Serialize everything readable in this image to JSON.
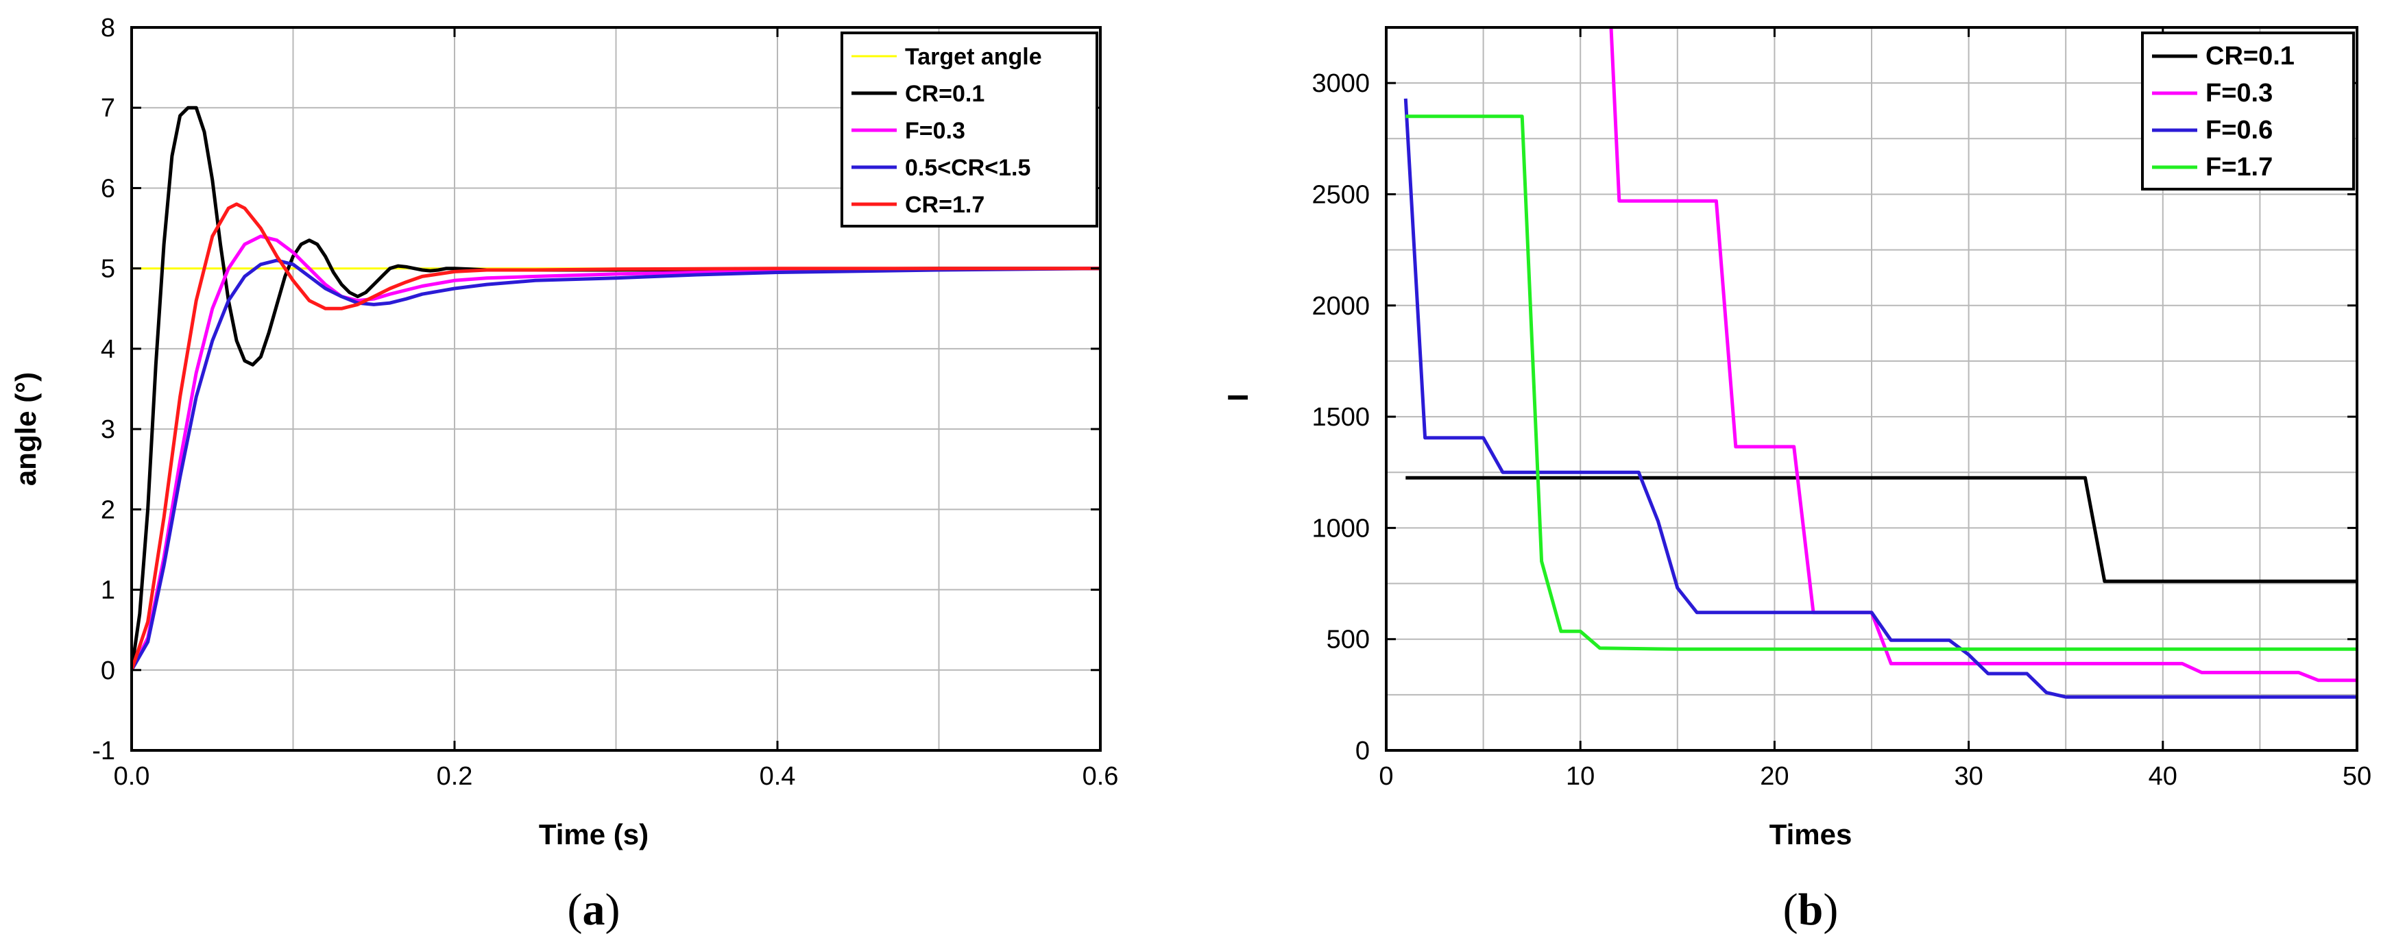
{
  "charts_meta": {
    "label_a_open": "(",
    "label_a_letter": "a",
    "label_a_close": ")",
    "label_b_open": "(",
    "label_b_letter": "b",
    "label_b_close": ")"
  },
  "chart_data": [
    {
      "panel": "(a)",
      "type": "line",
      "title": "",
      "xlabel": "Time (s)",
      "ylabel": "angle (°)",
      "xlim": [
        0,
        0.6
      ],
      "ylim": [
        -1,
        8
      ],
      "xticks": [
        "0.0",
        "0.2",
        "0.4",
        "0.6"
      ],
      "yticks": [
        "-1",
        "0",
        "1",
        "2",
        "3",
        "4",
        "5",
        "6",
        "7",
        "8"
      ],
      "grid": true,
      "legend_position": "top-right",
      "series": [
        {
          "name": "Target angle",
          "color": "#ffff00",
          "x": [
            0,
            0.6
          ],
          "y": [
            5,
            5
          ]
        },
        {
          "name": "CR=0.1",
          "color": "#000000",
          "x": [
            0,
            0.005,
            0.01,
            0.015,
            0.02,
            0.025,
            0.03,
            0.035,
            0.04,
            0.045,
            0.05,
            0.055,
            0.06,
            0.065,
            0.07,
            0.075,
            0.08,
            0.085,
            0.09,
            0.095,
            0.1,
            0.105,
            0.11,
            0.115,
            0.12,
            0.125,
            0.13,
            0.135,
            0.14,
            0.145,
            0.15,
            0.155,
            0.16,
            0.165,
            0.17,
            0.175,
            0.18,
            0.185,
            0.19,
            0.195,
            0.2,
            0.21,
            0.22,
            0.23,
            0.24,
            0.25,
            0.27,
            0.3,
            0.4,
            0.5,
            0.6
          ],
          "y": [
            0,
            0.7,
            2.0,
            3.8,
            5.3,
            6.4,
            6.9,
            7.0,
            7.0,
            6.7,
            6.1,
            5.3,
            4.6,
            4.1,
            3.85,
            3.8,
            3.9,
            4.2,
            4.55,
            4.9,
            5.15,
            5.3,
            5.35,
            5.3,
            5.15,
            4.95,
            4.8,
            4.7,
            4.65,
            4.7,
            4.8,
            4.9,
            5.0,
            5.03,
            5.02,
            5.0,
            4.98,
            4.97,
            4.98,
            5.0,
            5.0,
            4.99,
            4.98,
            4.98,
            4.98,
            4.98,
            4.98,
            4.98,
            4.99,
            5.0,
            5.0
          ]
        },
        {
          "name": "F=0.3",
          "color": "#ff00ff",
          "x": [
            0,
            0.01,
            0.02,
            0.03,
            0.04,
            0.05,
            0.06,
            0.07,
            0.08,
            0.09,
            0.1,
            0.11,
            0.12,
            0.13,
            0.14,
            0.15,
            0.16,
            0.18,
            0.2,
            0.22,
            0.25,
            0.3,
            0.35,
            0.4,
            0.5,
            0.6
          ],
          "y": [
            0,
            0.4,
            1.4,
            2.6,
            3.7,
            4.5,
            5.0,
            5.3,
            5.4,
            5.35,
            5.2,
            5.0,
            4.8,
            4.65,
            4.6,
            4.62,
            4.68,
            4.78,
            4.85,
            4.88,
            4.9,
            4.93,
            4.95,
            4.97,
            4.99,
            5.0
          ]
        },
        {
          "name": "0.5<CR<1.5",
          "color": "#2b1bd6",
          "x": [
            0,
            0.01,
            0.02,
            0.03,
            0.04,
            0.05,
            0.06,
            0.07,
            0.08,
            0.09,
            0.1,
            0.11,
            0.12,
            0.13,
            0.14,
            0.15,
            0.16,
            0.17,
            0.18,
            0.2,
            0.22,
            0.25,
            0.3,
            0.35,
            0.4,
            0.5,
            0.6
          ],
          "y": [
            0,
            0.35,
            1.3,
            2.4,
            3.4,
            4.1,
            4.6,
            4.9,
            5.05,
            5.1,
            5.05,
            4.9,
            4.75,
            4.65,
            4.57,
            4.55,
            4.57,
            4.62,
            4.68,
            4.75,
            4.8,
            4.85,
            4.88,
            4.92,
            4.95,
            4.98,
            5.0
          ]
        },
        {
          "name": "CR=1.7",
          "color": "#ff1a1a",
          "x": [
            0,
            0.01,
            0.02,
            0.03,
            0.04,
            0.05,
            0.06,
            0.065,
            0.07,
            0.08,
            0.09,
            0.1,
            0.11,
            0.12,
            0.13,
            0.14,
            0.15,
            0.16,
            0.17,
            0.18,
            0.2,
            0.22,
            0.25,
            0.3,
            0.4,
            0.5,
            0.6
          ],
          "y": [
            0,
            0.6,
            1.9,
            3.4,
            4.6,
            5.4,
            5.75,
            5.8,
            5.75,
            5.5,
            5.15,
            4.85,
            4.6,
            4.5,
            4.5,
            4.55,
            4.65,
            4.75,
            4.83,
            4.9,
            4.96,
            4.98,
            4.98,
            4.99,
            5.0,
            5.0,
            5.0
          ]
        }
      ]
    },
    {
      "panel": "(b)",
      "type": "line",
      "title": "",
      "xlabel": "Times",
      "ylabel": "I",
      "xlim": [
        0,
        50
      ],
      "ylim": [
        0,
        3250
      ],
      "xticks": [
        "0",
        "10",
        "20",
        "30",
        "40",
        "50"
      ],
      "yticks": [
        "0",
        "500",
        "1000",
        "1500",
        "2000",
        "2500",
        "3000"
      ],
      "grid": true,
      "legend_position": "top-right",
      "series": [
        {
          "name": "CR=0.1",
          "color": "#000000",
          "x": [
            1,
            36,
            37,
            50
          ],
          "y": [
            1225,
            1225,
            760,
            760
          ]
        },
        {
          "name": "F=0.3",
          "color": "#ff00ff",
          "x": [
            11.5,
            12,
            17,
            18,
            21,
            22,
            25,
            26,
            41,
            42,
            47,
            48,
            50
          ],
          "y": [
            3400,
            2470,
            2470,
            1365,
            1365,
            620,
            620,
            390,
            390,
            350,
            350,
            315,
            315
          ]
        },
        {
          "name": "F=0.6",
          "color": "#2b1bd6",
          "x": [
            1,
            2,
            5,
            6,
            13,
            14,
            15,
            16,
            25,
            26,
            29,
            30,
            31,
            33,
            34,
            35,
            50
          ],
          "y": [
            2930,
            1405,
            1405,
            1250,
            1250,
            1030,
            730,
            620,
            620,
            495,
            495,
            430,
            345,
            345,
            260,
            240,
            240
          ]
        },
        {
          "name": "F=1.7",
          "color": "#22ee22",
          "x": [
            1,
            7,
            8,
            9,
            10,
            11,
            15,
            50
          ],
          "y": [
            2850,
            2850,
            850,
            535,
            535,
            460,
            455,
            455
          ]
        }
      ]
    }
  ]
}
